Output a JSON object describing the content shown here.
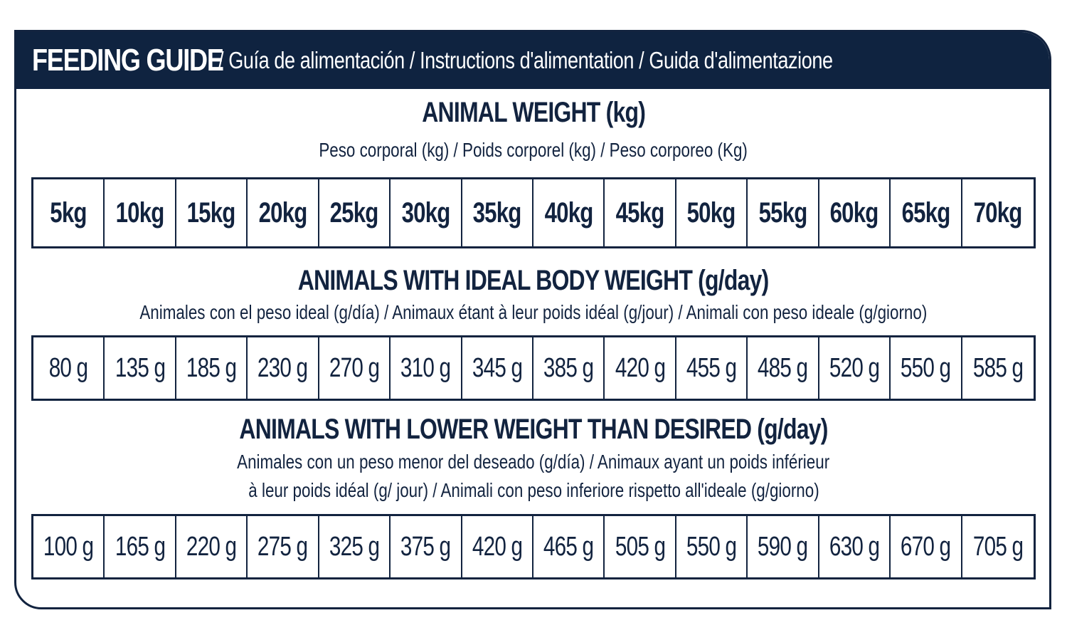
{
  "header": {
    "title_main": "FEEDING GUIDE",
    "title_rest": "/ Guía de alimentación / Instructions d'alimentation / Guida d'alimentazione"
  },
  "weight_section": {
    "title": "ANIMAL WEIGHT (kg)",
    "subtitle": "Peso corporal (kg) / Poids corporel (kg) / Peso corporeo (Kg)",
    "values": [
      "5kg",
      "10kg",
      "15kg",
      "20kg",
      "25kg",
      "30kg",
      "35kg",
      "40kg",
      "45kg",
      "50kg",
      "55kg",
      "60kg",
      "65kg",
      "70kg"
    ]
  },
  "ideal_section": {
    "title": "ANIMALS WITH IDEAL BODY WEIGHT (g/day)",
    "subtitle": "Animales con el peso ideal (g/día) / Animaux étant à leur poids idéal (g/jour) / Animali con peso ideale (g/giorno)",
    "values": [
      "80 g",
      "135 g",
      "185 g",
      "230 g",
      "270 g",
      "310 g",
      "345 g",
      "385 g",
      "420 g",
      "455 g",
      "485 g",
      "520 g",
      "550 g",
      "585 g"
    ]
  },
  "lower_section": {
    "title": "ANIMALS WITH LOWER WEIGHT THAN DESIRED (g/day)",
    "subtitle_line1": "Animales con un peso menor del deseado (g/día) / Animaux ayant un poids inférieur",
    "subtitle_line2": "à leur poids idéal (g/ jour) / Animali con peso inferiore rispetto all'ideale (g/giorno)",
    "values": [
      "100 g",
      "165 g",
      "220 g",
      "275 g",
      "325 g",
      "375 g",
      "420 g",
      "465 g",
      "505 g",
      "550 g",
      "590 g",
      "630 g",
      "670 g",
      "705 g"
    ]
  },
  "colors": {
    "navy": "#0f2340",
    "text": "#12233f",
    "background": "#ffffff"
  }
}
